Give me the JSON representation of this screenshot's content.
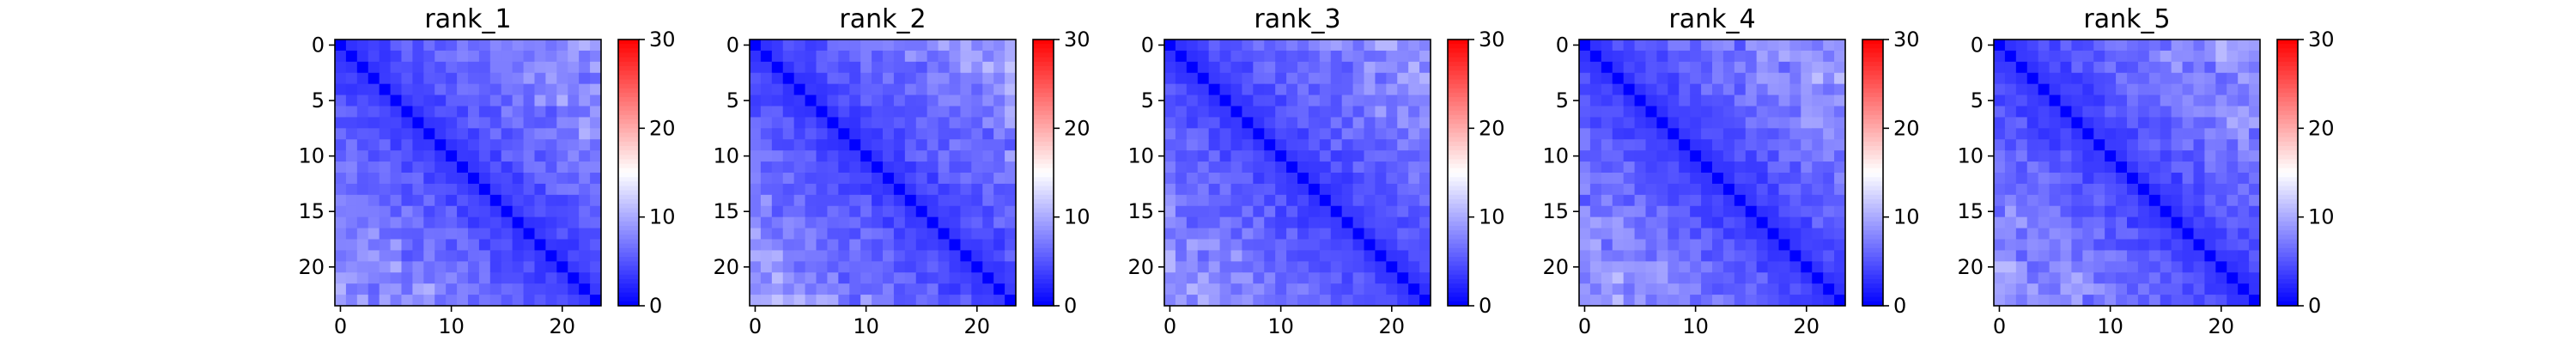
{
  "figure": {
    "background": "#ffffff"
  },
  "chart_data": [
    {
      "type": "heatmap",
      "title": "rank_1",
      "matrix_size": 24,
      "x_ticks": [
        0,
        10,
        20
      ],
      "y_ticks": [
        0,
        5,
        10,
        15,
        20
      ],
      "colorbar": {
        "min": 0,
        "max": 30,
        "ticks": [
          0,
          10,
          20,
          30
        ],
        "colormap": "bwr"
      },
      "seed": 11,
      "values": []
    },
    {
      "type": "heatmap",
      "title": "rank_2",
      "matrix_size": 24,
      "x_ticks": [
        0,
        10,
        20
      ],
      "y_ticks": [
        0,
        5,
        10,
        15,
        20
      ],
      "colorbar": {
        "min": 0,
        "max": 30,
        "ticks": [
          0,
          10,
          20,
          30
        ],
        "colormap": "bwr"
      },
      "seed": 22,
      "values": []
    },
    {
      "type": "heatmap",
      "title": "rank_3",
      "matrix_size": 24,
      "x_ticks": [
        0,
        10,
        20
      ],
      "y_ticks": [
        0,
        5,
        10,
        15,
        20
      ],
      "colorbar": {
        "min": 0,
        "max": 30,
        "ticks": [
          0,
          10,
          20,
          30
        ],
        "colormap": "bwr"
      },
      "seed": 33,
      "values": []
    },
    {
      "type": "heatmap",
      "title": "rank_4",
      "matrix_size": 24,
      "x_ticks": [
        0,
        10,
        20
      ],
      "y_ticks": [
        0,
        5,
        10,
        15,
        20
      ],
      "colorbar": {
        "min": 0,
        "max": 30,
        "ticks": [
          0,
          10,
          20,
          30
        ],
        "colormap": "bwr"
      },
      "seed": 44,
      "values": []
    },
    {
      "type": "heatmap",
      "title": "rank_5",
      "matrix_size": 24,
      "x_ticks": [
        0,
        10,
        20
      ],
      "y_ticks": [
        0,
        5,
        10,
        15,
        20
      ],
      "colorbar": {
        "min": 0,
        "max": 30,
        "ticks": [
          0,
          10,
          20,
          30
        ],
        "colormap": "bwr"
      },
      "seed": 55,
      "values": []
    }
  ]
}
